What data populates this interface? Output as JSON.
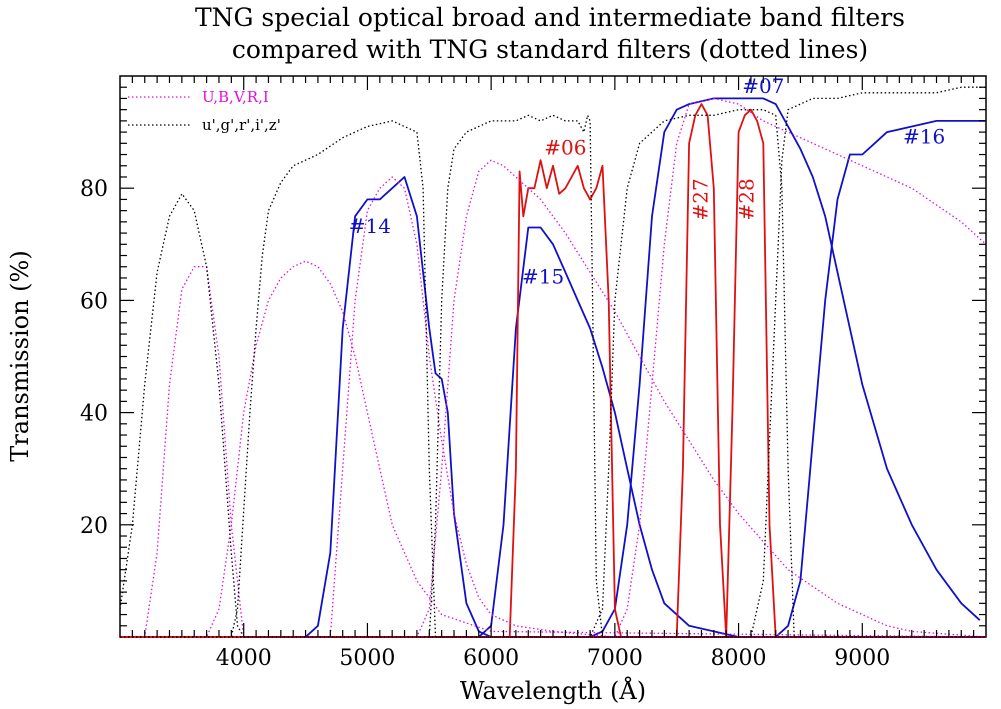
{
  "chart_data": {
    "type": "line",
    "title": "TNG special optical broad and intermediate band filters",
    "subtitle": "compared with TNG standard filters (dotted lines)",
    "xlabel": "Wavelength (Å)",
    "ylabel": "Transmission (%)",
    "xlim": [
      3000,
      10000
    ],
    "ylim": [
      0,
      100
    ],
    "x_ticks": [
      4000,
      5000,
      6000,
      7000,
      8000,
      9000
    ],
    "y_ticks": [
      20,
      40,
      60,
      80
    ],
    "grid": false,
    "legend_position": "top-left",
    "legend": [
      {
        "label": "U,B,V,R,I",
        "color": "#e010e0",
        "style": "dotted"
      },
      {
        "label": "u',g',r',i',z'",
        "color": "#000000",
        "style": "dotted"
      }
    ],
    "colors": {
      "standard_ubvri": "#e010e0",
      "standard_ugriz": "#000000",
      "special_broad": "#1010c8",
      "special_intermediate": "#e01010"
    },
    "series": [
      {
        "name": "#14",
        "color": "#1010c8",
        "style": "solid",
        "x": [
          3000,
          4500,
          4600,
          4700,
          4800,
          4900,
          5000,
          5100,
          5200,
          5300,
          5400,
          5500,
          5550,
          5600,
          5650,
          5700,
          5800,
          5900,
          6000,
          10000
        ],
        "y": [
          0,
          0,
          2,
          15,
          55,
          75,
          78,
          78,
          80,
          82,
          75,
          55,
          47,
          46,
          40,
          22,
          6,
          1,
          0,
          0
        ]
      },
      {
        "name": "#15",
        "color": "#1010c8",
        "style": "solid",
        "x": [
          3000,
          5900,
          6000,
          6100,
          6200,
          6300,
          6400,
          6500,
          6600,
          6700,
          6800,
          6900,
          7000,
          7100,
          7200,
          7300,
          7400,
          7600,
          7800,
          8000,
          10000
        ],
        "y": [
          0,
          0,
          2,
          20,
          55,
          73,
          73,
          70,
          65,
          60,
          55,
          48,
          40,
          30,
          20,
          12,
          6,
          2,
          1,
          0,
          0
        ]
      },
      {
        "name": "#16",
        "color": "#1010c8",
        "style": "solid",
        "x": [
          3000,
          8300,
          8400,
          8500,
          8600,
          8700,
          8800,
          8900,
          9000,
          9100,
          9200,
          9400,
          9600,
          9800,
          10000
        ],
        "y": [
          0,
          0,
          2,
          10,
          35,
          60,
          78,
          86,
          86,
          88,
          90,
          91,
          92,
          92,
          92
        ]
      },
      {
        "name": "#07",
        "color": "#1010c8",
        "style": "solid",
        "x": [
          3000,
          6800,
          6900,
          7000,
          7100,
          7200,
          7300,
          7400,
          7500,
          7600,
          7800,
          8000,
          8200,
          8300,
          8400,
          8500,
          8600,
          8700,
          8800,
          8900,
          9000,
          9200,
          9400,
          9600,
          9800,
          9950
        ],
        "y": [
          0,
          0,
          1,
          5,
          20,
          45,
          75,
          90,
          94,
          95,
          96,
          96,
          96,
          95,
          91,
          87,
          82,
          75,
          65,
          55,
          45,
          30,
          20,
          12,
          6,
          3
        ]
      },
      {
        "name": "#06",
        "color": "#e01010",
        "style": "solid",
        "x": [
          3000,
          6150,
          6200,
          6230,
          6260,
          6300,
          6350,
          6400,
          6450,
          6500,
          6550,
          6600,
          6650,
          6700,
          6750,
          6800,
          6850,
          6900,
          6950,
          7000,
          7050,
          10000
        ],
        "y": [
          0,
          0,
          30,
          83,
          75,
          80,
          80,
          85,
          80,
          84,
          79,
          80,
          82,
          84,
          80,
          78,
          80,
          84,
          60,
          5,
          0,
          0
        ]
      },
      {
        "name": "#27",
        "color": "#e01010",
        "style": "solid",
        "x": [
          3000,
          7500,
          7550,
          7600,
          7650,
          7700,
          7750,
          7800,
          7850,
          7900,
          10000
        ],
        "y": [
          0,
          0,
          30,
          88,
          93,
          95,
          93,
          80,
          20,
          0,
          0
        ]
      },
      {
        "name": "#28",
        "color": "#e01010",
        "style": "solid",
        "x": [
          3000,
          7900,
          7950,
          8000,
          8050,
          8100,
          8150,
          8200,
          8250,
          8300,
          10000
        ],
        "y": [
          0,
          0,
          40,
          90,
          93,
          94,
          92,
          88,
          20,
          0,
          0
        ]
      },
      {
        "name": "U",
        "color": "#e010e0",
        "style": "dotted",
        "x": [
          3000,
          3200,
          3300,
          3400,
          3500,
          3600,
          3700,
          3800,
          3900,
          4000,
          10000
        ],
        "y": [
          0,
          0,
          15,
          45,
          62,
          66,
          66,
          50,
          20,
          0,
          0
        ]
      },
      {
        "name": "B",
        "color": "#e010e0",
        "style": "dotted",
        "x": [
          3000,
          3700,
          3800,
          3900,
          4000,
          4100,
          4200,
          4300,
          4400,
          4500,
          4600,
          4700,
          4800,
          4900,
          5000,
          5100,
          5200,
          5400,
          5600,
          6000,
          10000
        ],
        "y": [
          0,
          0,
          5,
          20,
          40,
          52,
          60,
          64,
          66,
          67,
          66,
          63,
          58,
          50,
          40,
          30,
          20,
          10,
          4,
          1,
          0
        ]
      },
      {
        "name": "V",
        "color": "#e010e0",
        "style": "dotted",
        "x": [
          3000,
          4700,
          4800,
          4900,
          5000,
          5100,
          5200,
          5300,
          5400,
          5500,
          5600,
          5700,
          5800,
          5900,
          6000,
          6200,
          6500,
          7000,
          10000
        ],
        "y": [
          0,
          0,
          30,
          60,
          76,
          80,
          82,
          80,
          70,
          50,
          35,
          22,
          13,
          7,
          4,
          2,
          1,
          0,
          0
        ]
      },
      {
        "name": "R",
        "color": "#e010e0",
        "style": "dotted",
        "x": [
          3000,
          5400,
          5500,
          5600,
          5700,
          5800,
          5900,
          6000,
          6100,
          6200,
          6400,
          6600,
          6800,
          7000,
          7200,
          7400,
          7600,
          7800,
          8000,
          8200,
          8400,
          8600,
          8800,
          9000,
          9200,
          9400,
          10000
        ],
        "y": [
          0,
          0,
          5,
          30,
          60,
          75,
          83,
          85,
          84,
          82,
          78,
          72,
          65,
          58,
          50,
          42,
          35,
          28,
          22,
          17,
          12,
          9,
          6,
          4,
          2,
          1,
          0
        ]
      },
      {
        "name": "I",
        "color": "#e010e0",
        "style": "dotted",
        "x": [
          3000,
          7000,
          7100,
          7200,
          7300,
          7400,
          7500,
          7600,
          7800,
          8000,
          8200,
          8400,
          8600,
          8800,
          9000,
          9200,
          9400,
          9600,
          9800,
          10000
        ],
        "y": [
          0,
          0,
          5,
          20,
          45,
          70,
          88,
          95,
          96,
          95,
          92,
          90,
          88,
          86,
          84,
          82,
          80,
          77,
          74,
          70
        ]
      },
      {
        "name": "u'",
        "color": "#000000",
        "style": "dotted",
        "x": [
          3000,
          3100,
          3200,
          3300,
          3400,
          3500,
          3600,
          3700,
          3800,
          3900,
          3950,
          4000,
          10000
        ],
        "y": [
          5,
          20,
          45,
          65,
          75,
          79,
          76,
          66,
          45,
          15,
          2,
          0,
          0
        ]
      },
      {
        "name": "g'",
        "color": "#000000",
        "style": "dotted",
        "x": [
          3000,
          3900,
          3950,
          4050,
          4100,
          4150,
          4200,
          4300,
          4400,
          4600,
          4800,
          5000,
          5200,
          5300,
          5400,
          5450,
          5500,
          5550,
          10000
        ],
        "y": [
          0,
          0,
          5,
          40,
          55,
          68,
          76,
          81,
          84,
          86,
          89,
          91,
          92,
          91,
          90,
          80,
          30,
          0,
          0
        ]
      },
      {
        "name": "r'",
        "color": "#000000",
        "style": "dotted",
        "x": [
          3000,
          5500,
          5550,
          5600,
          5650,
          5700,
          5800,
          5900,
          6000,
          6100,
          6200,
          6300,
          6400,
          6500,
          6600,
          6700,
          6750,
          6780,
          6800,
          6820,
          6850,
          6900,
          10000
        ],
        "y": [
          0,
          0,
          20,
          60,
          80,
          87,
          90,
          91,
          92,
          92,
          92,
          93,
          92,
          93,
          92,
          92,
          90,
          93,
          92,
          60,
          10,
          0,
          0
        ]
      },
      {
        "name": "i'",
        "color": "#000000",
        "style": "dotted",
        "x": [
          3000,
          6800,
          6900,
          6950,
          7000,
          7100,
          7200,
          7400,
          7600,
          7800,
          8000,
          8200,
          8300,
          8350,
          8400,
          8450,
          10000
        ],
        "y": [
          0,
          0,
          5,
          30,
          60,
          80,
          88,
          92,
          93,
          93,
          94,
          94,
          93,
          80,
          30,
          0,
          0
        ]
      },
      {
        "name": "z'",
        "color": "#000000",
        "style": "dotted",
        "x": [
          3000,
          8100,
          8200,
          8300,
          8350,
          8400,
          8500,
          8600,
          8800,
          9000,
          9200,
          9400,
          9600,
          9800,
          10000
        ],
        "y": [
          0,
          0,
          10,
          60,
          85,
          94,
          95,
          96,
          96,
          97,
          97,
          97,
          97,
          98,
          98
        ]
      }
    ],
    "annotations": [
      {
        "text": "#14",
        "x": 5020,
        "y": 72,
        "color": "#1010c8",
        "rotate": 0
      },
      {
        "text": "#15",
        "x": 6420,
        "y": 63,
        "color": "#1010c8",
        "rotate": 0
      },
      {
        "text": "#16",
        "x": 9500,
        "y": 88,
        "color": "#1010c8",
        "rotate": 0
      },
      {
        "text": "#07",
        "x": 8200,
        "y": 97,
        "color": "#1010c8",
        "rotate": 0
      },
      {
        "text": "#06",
        "x": 6600,
        "y": 86,
        "color": "#e01010",
        "rotate": 0
      },
      {
        "text": "#27",
        "x": 7750,
        "y": 78,
        "color": "#e01010",
        "rotate": -90
      },
      {
        "text": "#28",
        "x": 8120,
        "y": 78,
        "color": "#e01010",
        "rotate": -90
      }
    ]
  }
}
